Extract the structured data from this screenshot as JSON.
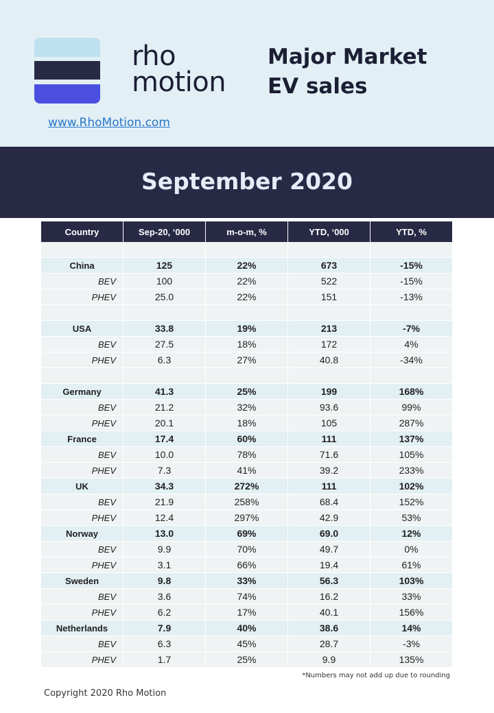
{
  "header": {
    "brand_line1": "rho",
    "brand_line2": "motion",
    "title_line1": "Major Market",
    "title_line2": "EV sales",
    "website": "www.RhoMotion.com"
  },
  "banner": {
    "title": "September 2020"
  },
  "table": {
    "columns": [
      "Country",
      "Sep-20, ‘000",
      "m-o-m, %",
      "YTD, ‘000",
      "YTD, %"
    ],
    "rows": [
      {
        "type": "empty",
        "cells": [
          "",
          "",
          "",
          "",
          ""
        ]
      },
      {
        "type": "country",
        "cells": [
          "China",
          "125",
          "22%",
          "673",
          "-15%"
        ]
      },
      {
        "type": "sub",
        "cells": [
          "BEV",
          "100",
          "22%",
          "522",
          "-15%"
        ]
      },
      {
        "type": "sub",
        "cells": [
          "PHEV",
          "25.0",
          "22%",
          "151",
          "-13%"
        ]
      },
      {
        "type": "empty",
        "cells": [
          "",
          "",
          "",
          "",
          ""
        ]
      },
      {
        "type": "country",
        "cells": [
          "USA",
          "33.8",
          "19%",
          "213",
          "-7%"
        ]
      },
      {
        "type": "sub",
        "cells": [
          "BEV",
          "27.5",
          "18%",
          "172",
          "4%"
        ]
      },
      {
        "type": "sub",
        "cells": [
          "PHEV",
          "6.3",
          "27%",
          "40.8",
          "-34%"
        ]
      },
      {
        "type": "empty",
        "cells": [
          "",
          "",
          "",
          "",
          ""
        ]
      },
      {
        "type": "country",
        "cells": [
          "Germany",
          "41.3",
          "25%",
          "199",
          "168%"
        ]
      },
      {
        "type": "sub",
        "cells": [
          "BEV",
          "21.2",
          "32%",
          "93.6",
          "99%"
        ]
      },
      {
        "type": "sub",
        "cells": [
          "PHEV",
          "20.1",
          "18%",
          "105",
          "287%"
        ]
      },
      {
        "type": "country",
        "cells": [
          "France",
          "17.4",
          "60%",
          "111",
          "137%"
        ]
      },
      {
        "type": "sub",
        "cells": [
          "BEV",
          "10.0",
          "78%",
          "71.6",
          "105%"
        ]
      },
      {
        "type": "sub",
        "cells": [
          "PHEV",
          "7.3",
          "41%",
          "39.2",
          "233%"
        ]
      },
      {
        "type": "country",
        "cells": [
          "UK",
          "34.3",
          "272%",
          "111",
          "102%"
        ]
      },
      {
        "type": "sub",
        "cells": [
          "BEV",
          "21.9",
          "258%",
          "68.4",
          "152%"
        ]
      },
      {
        "type": "sub",
        "cells": [
          "PHEV",
          "12.4",
          "297%",
          "42.9",
          "53%"
        ]
      },
      {
        "type": "country",
        "cells": [
          "Norway",
          "13.0",
          "69%",
          "69.0",
          "12%"
        ]
      },
      {
        "type": "sub",
        "cells": [
          "BEV",
          "9.9",
          "70%",
          "49.7",
          "0%"
        ]
      },
      {
        "type": "sub",
        "cells": [
          "PHEV",
          "3.1",
          "66%",
          "19.4",
          "61%"
        ]
      },
      {
        "type": "country",
        "cells": [
          "Sweden",
          "9.8",
          "33%",
          "56.3",
          "103%"
        ]
      },
      {
        "type": "sub",
        "cells": [
          "BEV",
          "3.6",
          "74%",
          "16.2",
          "33%"
        ]
      },
      {
        "type": "sub",
        "cells": [
          "PHEV",
          "6.2",
          "17%",
          "40.1",
          "156%"
        ]
      },
      {
        "type": "country",
        "cells": [
          "Netherlands",
          "7.9",
          "40%",
          "38.6",
          "14%"
        ]
      },
      {
        "type": "sub",
        "cells": [
          "BEV",
          "6.3",
          "45%",
          "28.7",
          "-3%"
        ]
      },
      {
        "type": "sub",
        "cells": [
          "PHEV",
          "1.7",
          "25%",
          "9.9",
          "135%"
        ]
      }
    ]
  },
  "footnote": "*Numbers may not add up due to rounding",
  "copyright": "Copyright 2020 Rho Motion",
  "colors": {
    "header_bg": "#e2eff5",
    "navy": "#272945",
    "accent_blue": "#4a4fe0",
    "light_blue": "#bfe0ee",
    "link": "#2a78c8"
  }
}
